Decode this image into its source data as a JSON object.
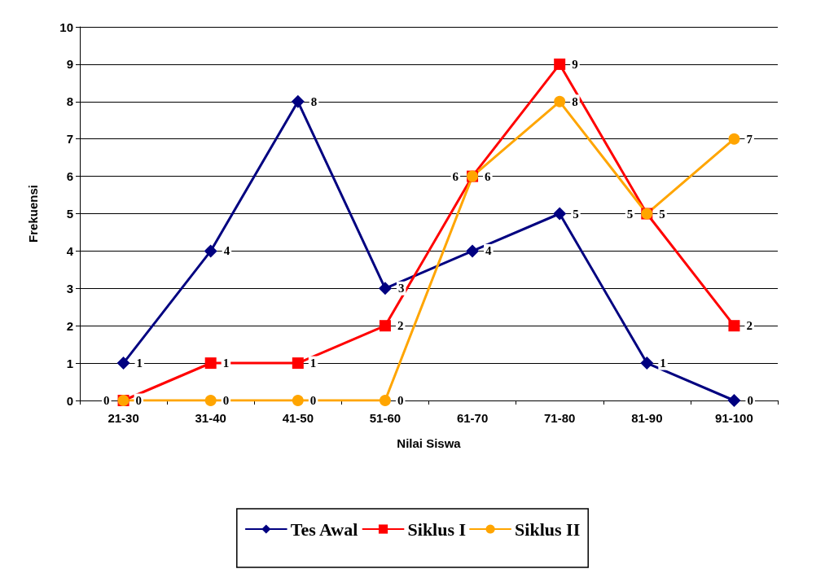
{
  "chart_data": {
    "type": "line",
    "xlabel": "Nilai Siswa",
    "ylabel": "Frekuensi",
    "categories": [
      "21-30",
      "31-40",
      "41-50",
      "51-60",
      "61-70",
      "71-80",
      "81-90",
      "91-100"
    ],
    "series": [
      {
        "name": "Tes Awal",
        "color": "#000080",
        "marker": "diamond",
        "values": [
          1,
          4,
          8,
          3,
          4,
          5,
          1,
          0
        ]
      },
      {
        "name": "Siklus I",
        "color": "#ff0000",
        "marker": "square",
        "values": [
          0,
          1,
          1,
          2,
          6,
          9,
          5,
          2
        ]
      },
      {
        "name": "Siklus II",
        "color": "#ffa500",
        "marker": "circle",
        "values": [
          0,
          0,
          0,
          0,
          6,
          8,
          5,
          7
        ]
      }
    ],
    "ylim": [
      0,
      10
    ],
    "yticks": [
      0,
      1,
      2,
      3,
      4,
      5,
      6,
      7,
      8,
      9,
      10
    ],
    "grid": "y",
    "legend": "bottom",
    "data_labels": true,
    "line_style": "solid"
  }
}
